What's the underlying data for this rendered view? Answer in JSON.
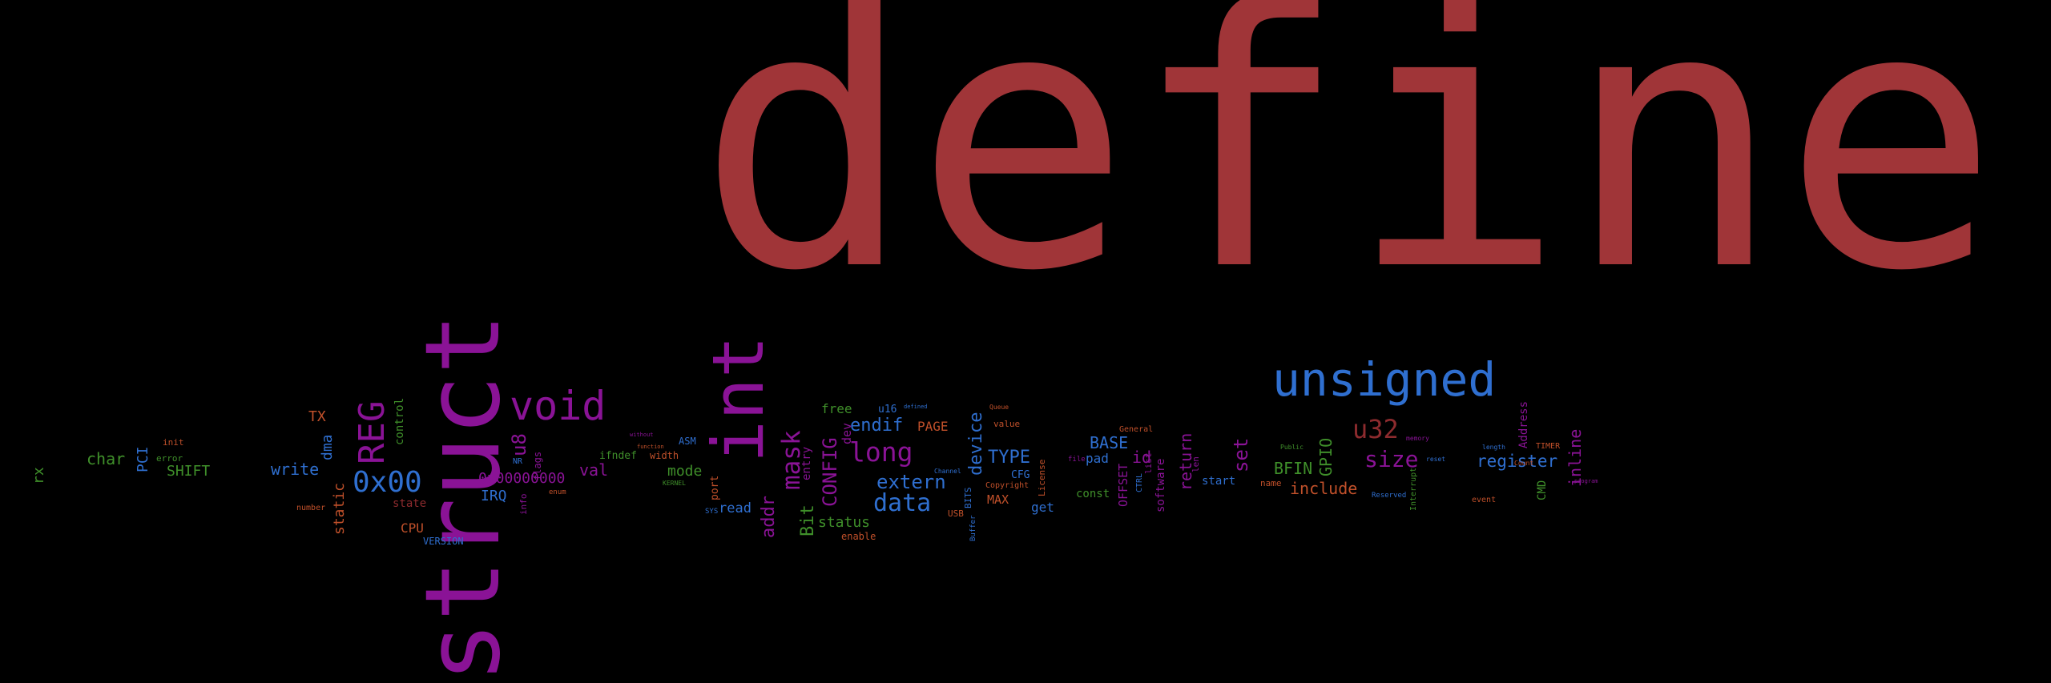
{
  "colors": {
    "background": "#000000",
    "red": "#a03538",
    "purple": "#8a1396",
    "blue": "#2f6fd0",
    "green": "#3f8f2a",
    "orange": "#c0502a"
  },
  "words": {
    "define": "define",
    "struct": "struct",
    "int": "int",
    "unsigned": "unsigned",
    "void": "void",
    "reg": "REG",
    "hex00": "0x00",
    "u32": "u32",
    "long": "long",
    "size": "size",
    "mask": "mask",
    "config": "CONFIG",
    "data": "data",
    "extern": "extern",
    "endif": "endif",
    "device": "device",
    "type": "TYPE",
    "base": "BASE",
    "register": "register",
    "include": "include",
    "bfin": "BFIN",
    "gpio": "GPIO",
    "set": "set",
    "return": "return",
    "inline": "inline",
    "id": "id",
    "addr": "addr",
    "bit": "Bit",
    "hex8": "0x00000000",
    "irq": "IRQ",
    "u8": "u8",
    "val": "val",
    "mode": "mode",
    "status": "status",
    "read": "read",
    "write": "write",
    "char": "char",
    "shift": "SHIFT",
    "pci": "PCI",
    "static": "static",
    "dma": "dma",
    "control": "control",
    "tx": "TX",
    "rx": "rx",
    "cpu": "CPU",
    "state": "state",
    "version": "VERSION",
    "page": "PAGE",
    "free": "free",
    "dev": "dev",
    "entry": "entry",
    "u16": "u16",
    "max": "MAX",
    "cfg": "CFG",
    "get": "get",
    "const": "const",
    "pad": "pad",
    "offset": "OFFSET",
    "software": "software",
    "start": "start",
    "cmd": "CMD",
    "address": "Address",
    "port": "port",
    "enable": "enable",
    "ifndef": "ifndef",
    "width": "width",
    "asm": "ASM",
    "flags": "flags",
    "error": "error",
    "init": "init",
    "number": "number",
    "info": "info",
    "usb": "USB",
    "value": "value",
    "copyright": "Copyright",
    "license": "License",
    "bits": "BITS",
    "general": "General",
    "list": "list",
    "len": "len",
    "name": "name",
    "ctrl": "CTRL",
    "timer": "TIMER",
    "event": "event",
    "reserved": "Reserved",
    "interrupt": "Interrupt",
    "nr": "NR",
    "enum": "enum",
    "kernel": "KERNEL",
    "sys": "SYS",
    "buffer": "Buffer",
    "file": "file",
    "public": "Public",
    "count": "Count",
    "length": "length",
    "queue": "Queue",
    "channel": "Channel",
    "memory": "memory",
    "reset": "reset",
    "defined": "defined",
    "function": "function",
    "without": "without",
    "program": "program"
  }
}
